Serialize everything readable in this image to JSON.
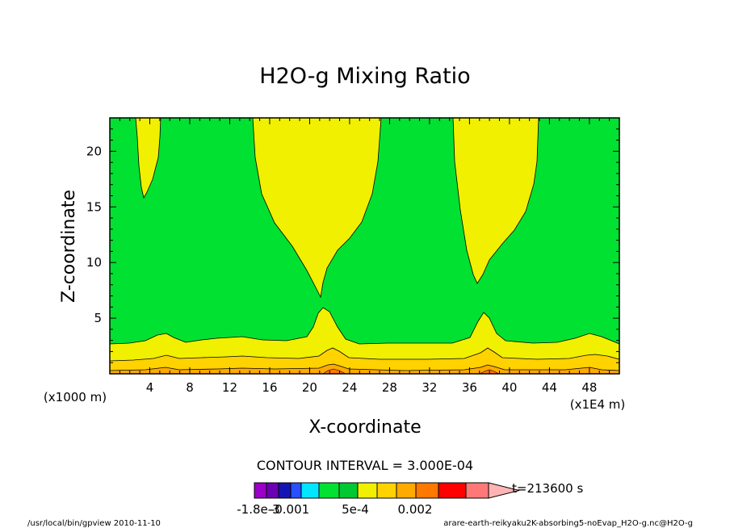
{
  "chart_data": {
    "type": "contour",
    "title": "H2O-g Mixing Ratio",
    "xlabel": "X-coordinate",
    "ylabel": "Z-coordinate",
    "x_unit_label": "(x1E4 m)",
    "y_unit_label": "(x1000 m)",
    "x_ticks": [
      4,
      8,
      12,
      16,
      20,
      24,
      28,
      32,
      36,
      40,
      44,
      48
    ],
    "y_ticks": [
      5,
      10,
      15,
      20
    ],
    "xlim": [
      0,
      51
    ],
    "ylim": [
      0,
      23
    ],
    "contour_interval_text": "CONTOUR INTERVAL = 3.000E-04",
    "colorbar": {
      "labels": [
        "-1.8e-3",
        "-0.001",
        "5e-4",
        "0.002"
      ],
      "colors": [
        "#9c00c8",
        "#6a00b4",
        "#1414b4",
        "#2850ff",
        "#00e6ff",
        "#00e132",
        "#00c832",
        "#f0f000",
        "#ffd200",
        "#ffaa00",
        "#ff7800",
        "#ff0000",
        "#ff7878",
        "#ffb4b4"
      ]
    },
    "time_label": "t=213600 s",
    "field_colors": {
      "background": "#00e132",
      "high_plumes": "#f0f000",
      "surface_1": "#f0f000",
      "surface_2": "#ffd200",
      "surface_3": "#ffaa00",
      "surface_4": "#ff7800"
    },
    "plumes": [
      {
        "x_left": [
          2.6,
          3.0
        ],
        "x_right": [
          5.1,
          5.1
        ],
        "tip": [
          3.4,
          15.7
        ]
      },
      {
        "top_left": 14.1,
        "top_right": 27.3,
        "tip": [
          21.0,
          7.0
        ]
      },
      {
        "top_left": 34.2,
        "top_right": 42.7,
        "tip": [
          37.0,
          8.1
        ]
      }
    ]
  },
  "footer": {
    "left": "/usr/local/bin/gpview  2010-11-10",
    "right": "arare-earth-reikyaku2K-absorbing5-noEvap_H2O-g.nc@H2O-g"
  }
}
